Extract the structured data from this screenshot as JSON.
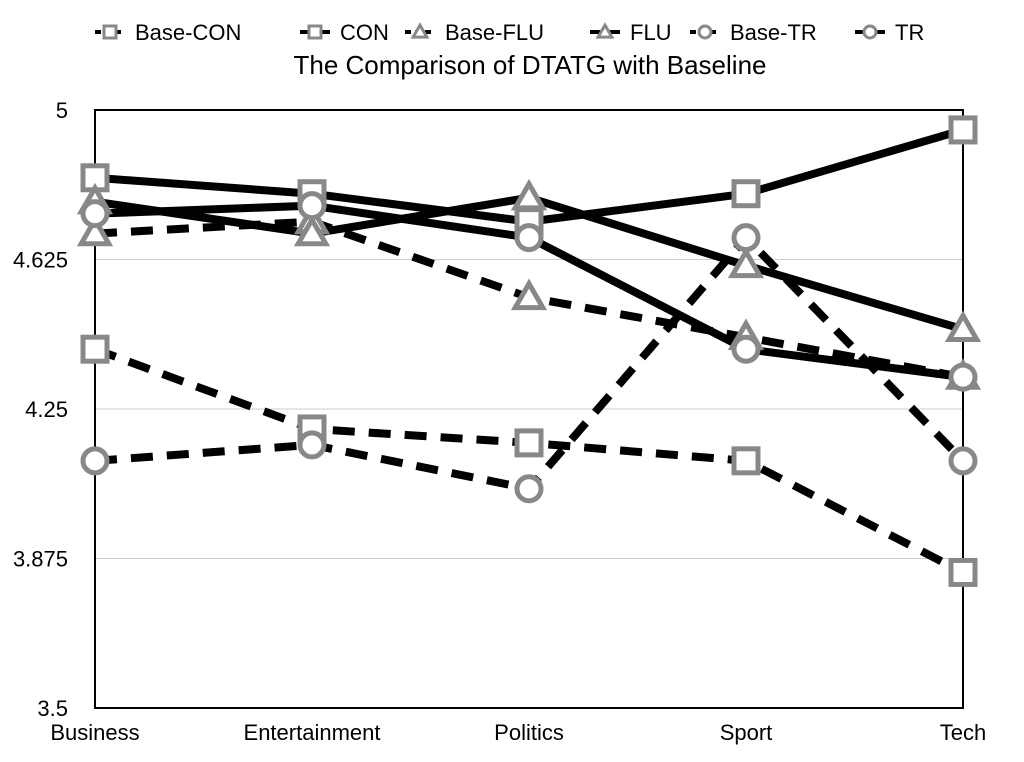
{
  "chart_data": {
    "type": "line",
    "title": "The Comparison of DTATG with Baseline",
    "xlabel": "",
    "ylabel": "",
    "categories": [
      "Business",
      "Entertainment",
      "Politics",
      "Sport",
      "Tech"
    ],
    "ylim": [
      3.5,
      5
    ],
    "yticks": [
      "5",
      "4.625",
      "4.25",
      "3.875",
      "3.5"
    ],
    "ytick_values": [
      5,
      4.625,
      4.25,
      3.875,
      3.5
    ],
    "grid": "horizontal",
    "legend_position": "top",
    "series": [
      {
        "name": "Base-CON",
        "marker": "square",
        "dash": true,
        "values": [
          4.4,
          4.2,
          4.165,
          4.12,
          3.84
        ]
      },
      {
        "name": "CON",
        "marker": "square",
        "dash": false,
        "values": [
          4.83,
          4.79,
          4.72,
          4.79,
          4.95
        ]
      },
      {
        "name": "Base-FLU",
        "marker": "triangle",
        "dash": true,
        "values": [
          4.69,
          4.72,
          4.53,
          4.43,
          4.33
        ]
      },
      {
        "name": "FLU",
        "marker": "triangle",
        "dash": false,
        "values": [
          4.77,
          4.69,
          4.78,
          4.61,
          4.45
        ]
      },
      {
        "name": "Base-TR",
        "marker": "circle",
        "dash": true,
        "values": [
          4.12,
          4.16,
          4.05,
          4.68,
          4.12
        ]
      },
      {
        "name": "TR",
        "marker": "circle",
        "dash": false,
        "values": [
          4.74,
          4.76,
          4.68,
          4.4,
          4.33
        ]
      }
    ],
    "colors": {
      "line": "#000000",
      "marker": "#888888",
      "grid": "#cccccc"
    }
  }
}
